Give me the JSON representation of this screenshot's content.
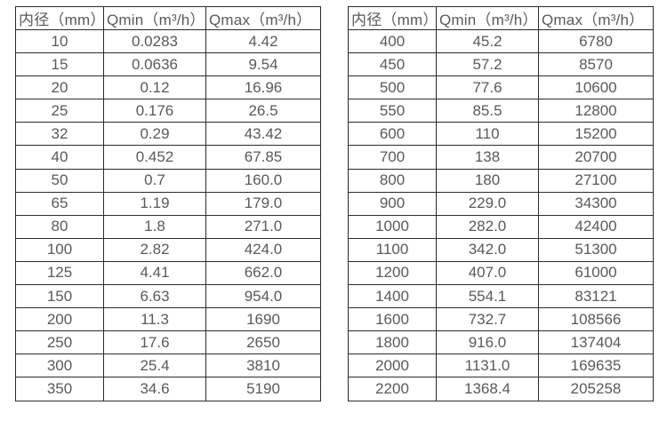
{
  "colors": {
    "border": "#2b2b2b",
    "text": "#595959",
    "background": "#ffffff"
  },
  "left_table": {
    "headers": [
      "内径（mm）",
      "Qmin（m³/h）",
      "Qmax（m³/h）"
    ],
    "rows": [
      [
        "10",
        "0.0283",
        "4.42"
      ],
      [
        "15",
        "0.0636",
        "9.54"
      ],
      [
        "20",
        "0.12",
        "16.96"
      ],
      [
        "25",
        "0.176",
        "26.5"
      ],
      [
        "32",
        "0.29",
        "43.42"
      ],
      [
        "40",
        "0.452",
        "67.85"
      ],
      [
        "50",
        "0.7",
        "160.0"
      ],
      [
        "65",
        "1.19",
        "179.0"
      ],
      [
        "80",
        "1.8",
        "271.0"
      ],
      [
        "100",
        "2.82",
        "424.0"
      ],
      [
        "125",
        "4.41",
        "662.0"
      ],
      [
        "150",
        "6.63",
        "954.0"
      ],
      [
        "200",
        "11.3",
        "1690"
      ],
      [
        "250",
        "17.6",
        "2650"
      ],
      [
        "300",
        "25.4",
        "3810"
      ],
      [
        "350",
        "34.6",
        "5190"
      ]
    ]
  },
  "right_table": {
    "headers": [
      "内径（mm）",
      "Qmin（m³/h）",
      "Qmax（m³/h）"
    ],
    "rows": [
      [
        "400",
        "45.2",
        "6780"
      ],
      [
        "450",
        "57.2",
        "8570"
      ],
      [
        "500",
        "77.6",
        "10600"
      ],
      [
        "550",
        "85.5",
        "12800"
      ],
      [
        "600",
        "110",
        "15200"
      ],
      [
        "700",
        "138",
        "20700"
      ],
      [
        "800",
        "180",
        "27100"
      ],
      [
        "900",
        "229.0",
        "34300"
      ],
      [
        "1000",
        "282.0",
        "42400"
      ],
      [
        "1100",
        "342.0",
        "51300"
      ],
      [
        "1200",
        "407.0",
        "61000"
      ],
      [
        "1400",
        "554.1",
        "83121"
      ],
      [
        "1600",
        "732.7",
        "108566"
      ],
      [
        "1800",
        "916.0",
        "137404"
      ],
      [
        "2000",
        "1131.0",
        "169635"
      ],
      [
        "2200",
        "1368.4",
        "205258"
      ]
    ]
  }
}
